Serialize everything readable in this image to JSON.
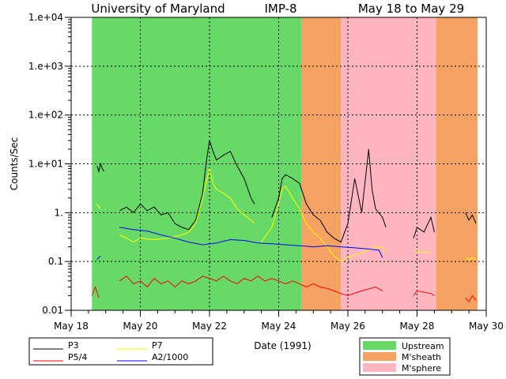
{
  "chart_data": {
    "type": "line",
    "title_parts": [
      "University of Maryland",
      "IMP-8",
      "May 18 to May 29"
    ],
    "xlabel": "Date (1991)",
    "ylabel": "Counts/Sec",
    "yscale": "log",
    "xlim": [
      18,
      30
    ],
    "ylim": [
      0.01,
      10000
    ],
    "grid": true,
    "x_ticks": [
      {
        "value": 18,
        "label": "May 18"
      },
      {
        "value": 20,
        "label": "May 20"
      },
      {
        "value": 22,
        "label": "May 22"
      },
      {
        "value": 24,
        "label": "May 24"
      },
      {
        "value": 26,
        "label": "May 26"
      },
      {
        "value": 28,
        "label": "May 28"
      },
      {
        "value": 30,
        "label": "May 30"
      }
    ],
    "y_ticks": [
      {
        "value": 0.01,
        "label": "0.01"
      },
      {
        "value": 0.1,
        "label": "0.1"
      },
      {
        "value": 1,
        "label": "1."
      },
      {
        "value": 10,
        "label": "1.e+01"
      },
      {
        "value": 100,
        "label": "1.e+02"
      },
      {
        "value": 1000,
        "label": "1.e+03"
      },
      {
        "value": 10000,
        "label": "1.e+04"
      }
    ],
    "regions": [
      {
        "name": "Upstream",
        "color": "#66d966",
        "spans": [
          [
            18.6,
            24.65
          ]
        ]
      },
      {
        "name": "M'sheath",
        "color": "#f5a262",
        "spans": [
          [
            24.65,
            25.8
          ],
          [
            28.55,
            29.75
          ]
        ]
      },
      {
        "name": "M'sphere",
        "color": "#ffb6c1",
        "spans": [
          [
            25.8,
            28.55
          ]
        ]
      }
    ],
    "series": [
      {
        "name": "P3",
        "color": "#000000",
        "segments": [
          [
            [
              18.75,
              9
            ],
            [
              18.8,
              7
            ],
            [
              18.85,
              10
            ],
            [
              18.9,
              8
            ],
            [
              18.95,
              7
            ]
          ],
          [
            [
              19.4,
              1.1
            ],
            [
              19.6,
              1.3
            ],
            [
              19.8,
              1.0
            ],
            [
              20.0,
              1.5
            ],
            [
              20.2,
              1.1
            ],
            [
              20.4,
              1.3
            ],
            [
              20.6,
              0.9
            ],
            [
              20.8,
              1.0
            ],
            [
              21.0,
              0.6
            ],
            [
              21.2,
              0.5
            ],
            [
              21.4,
              0.45
            ],
            [
              21.6,
              0.7
            ],
            [
              21.8,
              2.5
            ],
            [
              21.9,
              10
            ],
            [
              22.0,
              30
            ],
            [
              22.1,
              18
            ],
            [
              22.2,
              12
            ],
            [
              22.4,
              15
            ],
            [
              22.6,
              18
            ],
            [
              22.8,
              9
            ],
            [
              23.0,
              5
            ],
            [
              23.2,
              2
            ],
            [
              23.3,
              1.5
            ]
          ],
          [
            [
              23.8,
              0.8
            ],
            [
              24.0,
              2
            ],
            [
              24.1,
              5
            ],
            [
              24.2,
              6
            ],
            [
              24.4,
              5
            ],
            [
              24.6,
              4
            ],
            [
              24.8,
              1.5
            ],
            [
              25.0,
              0.9
            ],
            [
              25.2,
              0.7
            ],
            [
              25.4,
              0.4
            ],
            [
              25.6,
              0.3
            ],
            [
              25.8,
              0.25
            ],
            [
              26.0,
              0.6
            ],
            [
              26.2,
              5
            ],
            [
              26.4,
              1
            ],
            [
              26.6,
              20
            ],
            [
              26.7,
              3
            ],
            [
              26.8,
              1.2
            ],
            [
              27.0,
              0.8
            ],
            [
              27.1,
              0.5
            ]
          ],
          [
            [
              27.9,
              0.3
            ],
            [
              28.0,
              0.5
            ],
            [
              28.2,
              0.4
            ],
            [
              28.4,
              0.8
            ],
            [
              28.5,
              0.4
            ]
          ],
          [
            [
              29.4,
              1.0
            ],
            [
              29.5,
              0.7
            ],
            [
              29.6,
              0.9
            ],
            [
              29.7,
              0.6
            ]
          ]
        ]
      },
      {
        "name": "P7",
        "color": "#ffff00",
        "segments": [
          [
            [
              18.75,
              1.5
            ],
            [
              18.8,
              1.3
            ],
            [
              18.85,
              1.2
            ]
          ],
          [
            [
              19.4,
              0.35
            ],
            [
              19.6,
              0.3
            ],
            [
              19.8,
              0.25
            ],
            [
              20.0,
              0.3
            ],
            [
              20.4,
              0.28
            ],
            [
              20.8,
              0.3
            ],
            [
              21.2,
              0.35
            ],
            [
              21.4,
              0.4
            ],
            [
              21.6,
              0.6
            ],
            [
              21.8,
              2
            ],
            [
              22.0,
              8
            ],
            [
              22.1,
              4
            ],
            [
              22.2,
              3
            ],
            [
              22.4,
              2.5
            ],
            [
              22.6,
              2
            ],
            [
              22.8,
              1.2
            ],
            [
              23.0,
              0.9
            ],
            [
              23.2,
              0.7
            ],
            [
              23.3,
              0.6
            ]
          ],
          [
            [
              23.5,
              0.25
            ],
            [
              23.8,
              0.5
            ],
            [
              24.0,
              1.5
            ],
            [
              24.1,
              3
            ],
            [
              24.2,
              3.5
            ],
            [
              24.4,
              2
            ],
            [
              24.6,
              1.2
            ],
            [
              24.8,
              0.6
            ],
            [
              25.0,
              0.4
            ],
            [
              25.2,
              0.3
            ],
            [
              25.4,
              0.2
            ],
            [
              25.6,
              0.13
            ],
            [
              25.8,
              0.1
            ],
            [
              26.0,
              0.12
            ],
            [
              26.4,
              0.15
            ],
            [
              26.8,
              0.2
            ],
            [
              27.0,
              0.2
            ],
            [
              27.1,
              0.15
            ]
          ],
          [
            [
              27.9,
              0.18
            ],
            [
              28.0,
              0.16
            ],
            [
              28.4,
              0.15
            ]
          ],
          [
            [
              29.4,
              0.12
            ],
            [
              29.5,
              0.11
            ],
            [
              29.6,
              0.12
            ],
            [
              29.7,
              0.11
            ]
          ]
        ]
      },
      {
        "name": "P5/4",
        "color": "#ff0000",
        "segments": [
          [
            [
              18.6,
              0.02
            ],
            [
              18.7,
              0.03
            ],
            [
              18.8,
              0.018
            ]
          ],
          [
            [
              19.4,
              0.04
            ],
            [
              19.6,
              0.05
            ],
            [
              19.8,
              0.035
            ],
            [
              20.0,
              0.04
            ],
            [
              20.2,
              0.03
            ],
            [
              20.4,
              0.045
            ],
            [
              20.6,
              0.035
            ],
            [
              20.8,
              0.04
            ],
            [
              21.0,
              0.03
            ],
            [
              21.2,
              0.04
            ],
            [
              21.4,
              0.035
            ],
            [
              21.6,
              0.04
            ],
            [
              21.8,
              0.05
            ],
            [
              22.0,
              0.045
            ],
            [
              22.2,
              0.04
            ],
            [
              22.4,
              0.05
            ],
            [
              22.6,
              0.04
            ],
            [
              22.8,
              0.035
            ],
            [
              23.0,
              0.045
            ],
            [
              23.2,
              0.04
            ],
            [
              23.4,
              0.05
            ],
            [
              23.6,
              0.04
            ],
            [
              23.8,
              0.045
            ],
            [
              24.0,
              0.04
            ],
            [
              24.2,
              0.035
            ],
            [
              24.4,
              0.04
            ],
            [
              24.6,
              0.035
            ],
            [
              24.8,
              0.03
            ],
            [
              25.0,
              0.035
            ],
            [
              25.2,
              0.03
            ],
            [
              25.4,
              0.028
            ],
            [
              25.6,
              0.025
            ],
            [
              25.8,
              0.022
            ],
            [
              26.0,
              0.02
            ],
            [
              26.4,
              0.025
            ],
            [
              26.8,
              0.03
            ],
            [
              27.0,
              0.025
            ]
          ],
          [
            [
              27.9,
              0.02
            ],
            [
              28.0,
              0.025
            ],
            [
              28.4,
              0.022
            ],
            [
              28.5,
              0.02
            ]
          ],
          [
            [
              29.4,
              0.018
            ],
            [
              29.5,
              0.015
            ],
            [
              29.6,
              0.02
            ],
            [
              29.7,
              0.016
            ]
          ]
        ]
      },
      {
        "name": "A2/1000",
        "color": "#0000ff",
        "segments": [
          [
            [
              18.75,
              0.11
            ],
            [
              18.8,
              0.12
            ],
            [
              18.85,
              0.13
            ]
          ],
          [
            [
              19.4,
              0.5
            ],
            [
              19.8,
              0.45
            ],
            [
              20.2,
              0.42
            ],
            [
              20.6,
              0.35
            ],
            [
              21.0,
              0.3
            ],
            [
              21.4,
              0.25
            ],
            [
              21.8,
              0.22
            ],
            [
              22.2,
              0.24
            ],
            [
              22.6,
              0.28
            ],
            [
              23.0,
              0.27
            ],
            [
              23.4,
              0.24
            ],
            [
              23.8,
              0.23
            ],
            [
              24.2,
              0.22
            ],
            [
              24.6,
              0.21
            ],
            [
              25.0,
              0.2
            ],
            [
              25.4,
              0.21
            ],
            [
              25.8,
              0.2
            ],
            [
              26.2,
              0.19
            ],
            [
              26.6,
              0.18
            ],
            [
              26.9,
              0.17
            ],
            [
              27.0,
              0.12
            ]
          ]
        ]
      }
    ],
    "legend": [
      "P3",
      "P7",
      "P5/4",
      "A2/1000"
    ]
  }
}
